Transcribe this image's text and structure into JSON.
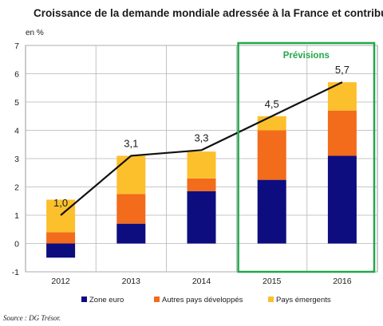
{
  "chart_data": {
    "type": "bar",
    "title": "Croissance de la demande mondiale adressée à la France et contributions",
    "unit_label": "en %",
    "categories": [
      "2012",
      "2013",
      "2014",
      "2015",
      "2016"
    ],
    "series": [
      {
        "name": "Zone euro",
        "values": [
          -0.5,
          0.7,
          1.85,
          2.25,
          3.1
        ],
        "color": "#0d0d80"
      },
      {
        "name": "Autres pays développés",
        "values": [
          0.4,
          1.05,
          0.45,
          1.75,
          1.6
        ],
        "color": "#f26c1b"
      },
      {
        "name": "Pays émergents",
        "values": [
          1.15,
          1.35,
          0.95,
          0.5,
          1.0
        ],
        "color": "#fcc02d"
      }
    ],
    "total": {
      "values": [
        1.0,
        3.1,
        3.3,
        4.5,
        5.7
      ],
      "labels": [
        "1,0",
        "3,1",
        "3,3",
        "4,5",
        "5,7"
      ]
    },
    "ylim": [
      -1,
      7
    ],
    "yticks": [
      "-1",
      "0",
      "1",
      "2",
      "3",
      "4",
      "5",
      "6",
      "7"
    ],
    "forecast": {
      "label": "Prévisions",
      "categories": [
        "2015",
        "2016"
      ],
      "color": "#22a84a"
    },
    "legend_position": "bottom",
    "grid": true
  },
  "source": "Source : DG Trésor."
}
